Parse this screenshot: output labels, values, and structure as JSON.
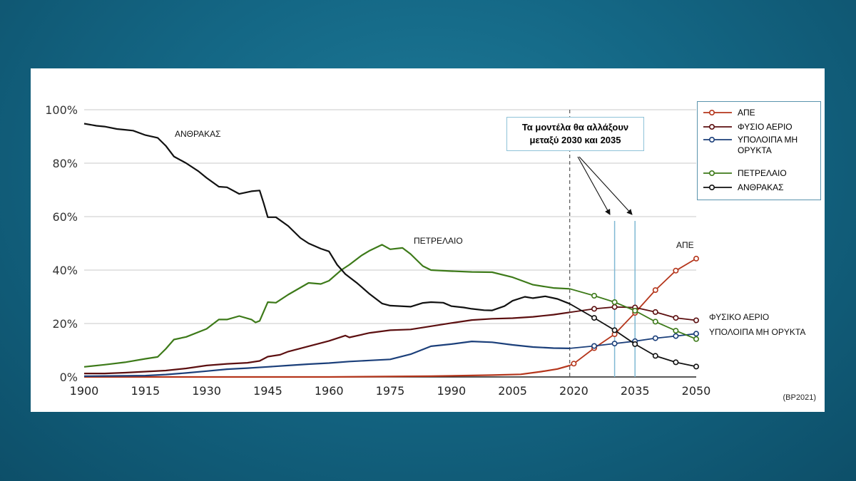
{
  "chart_data": {
    "type": "line",
    "source": "(BP2021)",
    "y_ticks": [
      "0%",
      "20%",
      "40%",
      "60%",
      "80%",
      "100%"
    ],
    "x_ticks": [
      "1900",
      "1915",
      "1930",
      "1945",
      "1960",
      "1975",
      "1990",
      "2005",
      "2020",
      "2035",
      "2050"
    ],
    "xlim": [
      1900,
      2050
    ],
    "ylim": [
      0,
      100
    ],
    "divider_year": 2019,
    "marker_years": [
      2030,
      2035
    ],
    "callout": {
      "line1": "Τα μοντέλα θα αλλάξουν",
      "line2": "μεταξύ 2030 και 2035"
    },
    "annotations": {
      "coal": "ΑΝΘΡΑΚΑΣ",
      "oil": "ΠΕΤΡΕΛΑΙΟ",
      "renewables": "ΑΠΕ",
      "gas": "ΦΥΣΙΚΟ ΑΕΡΙΟ",
      "other": "ΥΠΟΛΟΙΠΑ ΜΗ ΟΡΥΚΤΑ"
    },
    "series": [
      {
        "name": "ΑΠΕ",
        "color": "#b5361c",
        "history": [
          [
            1900,
            0
          ],
          [
            1960,
            0
          ],
          [
            1985,
            0.3
          ],
          [
            2000,
            0.7
          ],
          [
            2007,
            1
          ],
          [
            2012,
            2
          ],
          [
            2016,
            3
          ],
          [
            2019,
            4.3
          ]
        ],
        "projection": [
          [
            2019,
            4.3
          ],
          [
            2020,
            5
          ],
          [
            2025,
            10.8
          ],
          [
            2030,
            16
          ],
          [
            2035,
            24
          ],
          [
            2040,
            32.5
          ],
          [
            2045,
            39.8
          ],
          [
            2050,
            44.3
          ]
        ]
      },
      {
        "name": "ΦΥΣΙΟ ΑΕΡΙΟ",
        "color": "#5c0f10",
        "history": [
          [
            1900,
            1.3
          ],
          [
            1905,
            1.3
          ],
          [
            1910,
            1.6
          ],
          [
            1915,
            2
          ],
          [
            1920,
            2.4
          ],
          [
            1925,
            3.2
          ],
          [
            1930,
            4.3
          ],
          [
            1935,
            4.9
          ],
          [
            1940,
            5.3
          ],
          [
            1943,
            6
          ],
          [
            1945,
            7.6
          ],
          [
            1948,
            8.3
          ],
          [
            1950,
            9.5
          ],
          [
            1955,
            11.5
          ],
          [
            1960,
            13.5
          ],
          [
            1964,
            15.5
          ],
          [
            1965,
            14.8
          ],
          [
            1970,
            16.5
          ],
          [
            1975,
            17.5
          ],
          [
            1980,
            17.8
          ],
          [
            1985,
            19
          ],
          [
            1990,
            20.2
          ],
          [
            1995,
            21.3
          ],
          [
            2000,
            21.8
          ],
          [
            2005,
            22
          ],
          [
            2010,
            22.5
          ],
          [
            2015,
            23.3
          ],
          [
            2019,
            24.2
          ]
        ],
        "projection": [
          [
            2019,
            24.2
          ],
          [
            2025,
            25.5
          ],
          [
            2030,
            26.2
          ],
          [
            2035,
            26
          ],
          [
            2040,
            24.3
          ],
          [
            2045,
            22.1
          ],
          [
            2050,
            21.2
          ]
        ]
      },
      {
        "name": "ΥΠΟΛΟΙΠΑ ΜΗ ΟΡΥΚΤΑ",
        "color": "#1b3f7a",
        "history": [
          [
            1900,
            0.3
          ],
          [
            1915,
            0.5
          ],
          [
            1920,
            0.9
          ],
          [
            1925,
            1.5
          ],
          [
            1930,
            2.2
          ],
          [
            1935,
            2.9
          ],
          [
            1940,
            3.3
          ],
          [
            1945,
            3.8
          ],
          [
            1950,
            4.3
          ],
          [
            1955,
            4.8
          ],
          [
            1960,
            5.2
          ],
          [
            1965,
            5.8
          ],
          [
            1970,
            6.2
          ],
          [
            1975,
            6.6
          ],
          [
            1980,
            8.5
          ],
          [
            1983,
            10.3
          ],
          [
            1985,
            11.5
          ],
          [
            1990,
            12.3
          ],
          [
            1995,
            13.3
          ],
          [
            2000,
            13
          ],
          [
            2005,
            12
          ],
          [
            2010,
            11.2
          ],
          [
            2015,
            10.8
          ],
          [
            2019,
            10.7
          ]
        ],
        "projection": [
          [
            2019,
            10.7
          ],
          [
            2025,
            11.6
          ],
          [
            2030,
            12.5
          ],
          [
            2035,
            13.4
          ],
          [
            2040,
            14.5
          ],
          [
            2045,
            15.3
          ],
          [
            2050,
            16.2
          ]
        ]
      },
      {
        "name": "ΠΕΤΡΕΛΑΙΟ",
        "color": "#3d7a19",
        "history": [
          [
            1900,
            3.8
          ],
          [
            1905,
            4.6
          ],
          [
            1910,
            5.5
          ],
          [
            1915,
            6.8
          ],
          [
            1918,
            7.5
          ],
          [
            1920,
            10.5
          ],
          [
            1922,
            14
          ],
          [
            1925,
            15
          ],
          [
            1930,
            18
          ],
          [
            1933,
            21.5
          ],
          [
            1935,
            21.5
          ],
          [
            1938,
            22.8
          ],
          [
            1941,
            21.5
          ],
          [
            1942,
            20.4
          ],
          [
            1943,
            21
          ],
          [
            1945,
            28
          ],
          [
            1947,
            27.8
          ],
          [
            1950,
            30.8
          ],
          [
            1955,
            35.2
          ],
          [
            1958,
            34.8
          ],
          [
            1960,
            36
          ],
          [
            1963,
            40
          ],
          [
            1965,
            42
          ],
          [
            1968,
            45.5
          ],
          [
            1970,
            47.3
          ],
          [
            1973,
            49.5
          ],
          [
            1975,
            47.8
          ],
          [
            1978,
            48.3
          ],
          [
            1980,
            46
          ],
          [
            1983,
            41.5
          ],
          [
            1985,
            40
          ],
          [
            1990,
            39.6
          ],
          [
            1995,
            39.3
          ],
          [
            2000,
            39.2
          ],
          [
            2005,
            37.3
          ],
          [
            2010,
            34.5
          ],
          [
            2015,
            33.3
          ],
          [
            2019,
            33
          ]
        ],
        "projection": [
          [
            2019,
            33
          ],
          [
            2025,
            30.4
          ],
          [
            2030,
            28
          ],
          [
            2035,
            24.8
          ],
          [
            2040,
            20.7
          ],
          [
            2045,
            17.3
          ],
          [
            2050,
            14.2
          ]
        ]
      },
      {
        "name": "ΑΝΘΡΑΚΑΣ",
        "color": "#111111",
        "history": [
          [
            1900,
            94.8
          ],
          [
            1903,
            94
          ],
          [
            1905,
            93.7
          ],
          [
            1908,
            92.8
          ],
          [
            1910,
            92.5
          ],
          [
            1912,
            92.2
          ],
          [
            1915,
            90.5
          ],
          [
            1918,
            89.5
          ],
          [
            1920,
            86.5
          ],
          [
            1922,
            82.5
          ],
          [
            1925,
            80
          ],
          [
            1928,
            77
          ],
          [
            1930,
            74.5
          ],
          [
            1933,
            71.2
          ],
          [
            1935,
            71
          ],
          [
            1938,
            68.5
          ],
          [
            1941,
            69.5
          ],
          [
            1943,
            69.8
          ],
          [
            1944,
            65
          ],
          [
            1945,
            59.8
          ],
          [
            1947,
            59.8
          ],
          [
            1950,
            56.5
          ],
          [
            1953,
            52
          ],
          [
            1955,
            50
          ],
          [
            1958,
            48
          ],
          [
            1960,
            47
          ],
          [
            1962,
            42
          ],
          [
            1964,
            38.5
          ],
          [
            1967,
            35
          ],
          [
            1970,
            31
          ],
          [
            1973,
            27.5
          ],
          [
            1975,
            26.7
          ],
          [
            1980,
            26.3
          ],
          [
            1983,
            27.7
          ],
          [
            1985,
            28
          ],
          [
            1988,
            27.8
          ],
          [
            1990,
            26.5
          ],
          [
            1993,
            26
          ],
          [
            1995,
            25.5
          ],
          [
            1998,
            25
          ],
          [
            2000,
            24.9
          ],
          [
            2003,
            26.5
          ],
          [
            2005,
            28.5
          ],
          [
            2008,
            30
          ],
          [
            2010,
            29.5
          ],
          [
            2013,
            30.2
          ],
          [
            2016,
            29.2
          ],
          [
            2019,
            27.4
          ]
        ],
        "projection": [
          [
            2019,
            27.4
          ],
          [
            2025,
            22.1
          ],
          [
            2030,
            17.5
          ],
          [
            2035,
            12.3
          ],
          [
            2040,
            7.9
          ],
          [
            2045,
            5.5
          ],
          [
            2050,
            3.9
          ]
        ]
      }
    ],
    "legend": [
      {
        "label": "ΑΠΕ",
        "color": "#b5361c"
      },
      {
        "label": "ΦΥΣΙΟ ΑΕΡΙΟ",
        "color": "#5c0f10"
      },
      {
        "label": "ΥΠΟΛΟΙΠΑ ΜΗ ΟΡΥΚΤΑ",
        "color": "#1b3f7a"
      },
      {
        "label": "ΠΕΤΡΕΛΑΙΟ",
        "color": "#3d7a19"
      },
      {
        "label": "ΑΝΘΡΑΚΑΣ",
        "color": "#111111"
      }
    ]
  }
}
